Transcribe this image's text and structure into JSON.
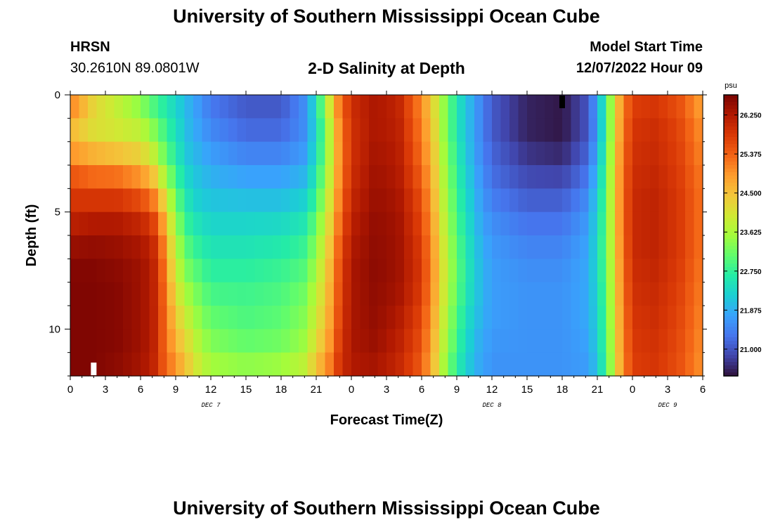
{
  "header": {
    "title": "University of Southern Mississippi Ocean Cube",
    "station": "HRSN",
    "coordinates": "30.2610N  89.0801W",
    "plot_title": "2-D Salinity at Depth",
    "start_label": "Model Start Time",
    "start_value": "12/07/2022 Hour 09"
  },
  "footer": {
    "title": "University of Southern Mississippi Ocean Cube"
  },
  "colors": {
    "background": "#ffffff",
    "text": "#000000"
  },
  "chart_data": {
    "type": "heatmap",
    "title": "2-D Salinity at Depth",
    "xlabel": "Forecast Time(Z)",
    "ylabel": "Depth (ft)",
    "x_range_hours_from_dec7_00z": [
      0,
      54
    ],
    "x_tick_labels": [
      "0",
      "3",
      "6",
      "9",
      "12",
      "15",
      "18",
      "21",
      "0",
      "3",
      "6",
      "9",
      "12",
      "15",
      "18",
      "21",
      "0",
      "3",
      "6"
    ],
    "date_labels": [
      "DEC 7",
      "DEC 8",
      "DEC 9"
    ],
    "y_range_ft": [
      0,
      12
    ],
    "y_tick_values": [
      0,
      5,
      10
    ],
    "y_tick_labels": [
      "0",
      "5",
      "10"
    ],
    "colorbar": {
      "unit": "psu",
      "range": [
        20.4,
        26.7
      ],
      "tick_values": [
        21.0,
        21.875,
        22.75,
        23.625,
        24.5,
        25.375,
        26.25
      ],
      "tick_labels": [
        "21.000",
        "21.875",
        "22.750",
        "23.625",
        "24.500",
        "25.375",
        "26.250"
      ],
      "colormap": [
        "#30123b",
        "#4145ab",
        "#4675ed",
        "#39a2fc",
        "#1bcfd4",
        "#24eca6",
        "#61fc6c",
        "#a4fc3b",
        "#d1e834",
        "#f3c63a",
        "#fe9b2d",
        "#f36315",
        "#d93806",
        "#b11901",
        "#7a0402"
      ]
    },
    "depths_ft": [
      0,
      1,
      2,
      3,
      4,
      5,
      6,
      7,
      8,
      9,
      10,
      11,
      12
    ],
    "profile_hours": [
      0,
      2,
      4,
      6,
      7,
      8,
      9,
      10,
      11,
      12,
      15,
      18,
      20,
      21,
      22,
      23,
      24,
      26,
      28,
      30,
      31,
      32,
      33,
      34,
      35,
      36,
      39,
      42,
      44,
      45,
      46,
      47,
      48,
      50,
      52,
      54
    ],
    "salinity_profiles_psu": [
      [
        25.6,
        24.6,
        24.6,
        25.3,
        25.7,
        26.0,
        26.3,
        26.6,
        26.65,
        26.65,
        26.65,
        26.65,
        26.65
      ],
      [
        24.5,
        24.0,
        24.3,
        25.0,
        25.6,
        26.1,
        26.4,
        26.6,
        26.65,
        26.65,
        26.65,
        26.65,
        26.65
      ],
      [
        23.8,
        23.9,
        24.1,
        24.9,
        25.6,
        26.1,
        26.4,
        26.5,
        26.6,
        26.6,
        26.6,
        26.6,
        26.5
      ],
      [
        23.2,
        23.6,
        24.0,
        24.6,
        25.3,
        25.9,
        26.2,
        26.4,
        26.4,
        26.4,
        26.4,
        26.4,
        26.3
      ],
      [
        22.8,
        23.2,
        23.6,
        24.2,
        24.9,
        25.6,
        26.0,
        26.2,
        26.2,
        26.2,
        26.2,
        26.2,
        26.1
      ],
      [
        22.5,
        22.8,
        23.0,
        23.4,
        24.0,
        24.6,
        25.0,
        25.2,
        25.3,
        25.4,
        25.4,
        25.4,
        25.5
      ],
      [
        22.2,
        22.4,
        22.5,
        22.7,
        23.0,
        23.3,
        23.6,
        23.8,
        24.0,
        24.3,
        24.5,
        24.8,
        25.0
      ],
      [
        21.9,
        22.0,
        22.0,
        22.2,
        22.4,
        22.6,
        22.9,
        23.1,
        23.4,
        23.7,
        24.0,
        24.3,
        24.5
      ],
      [
        21.6,
        21.7,
        21.8,
        22.0,
        22.1,
        22.3,
        22.6,
        22.8,
        23.1,
        23.3,
        23.5,
        23.8,
        24.0
      ],
      [
        21.3,
        21.4,
        21.6,
        21.8,
        22.0,
        22.2,
        22.4,
        22.6,
        22.8,
        23.0,
        23.2,
        23.4,
        23.7
      ],
      [
        21.0,
        21.1,
        21.3,
        21.6,
        21.9,
        22.2,
        22.4,
        22.6,
        22.8,
        22.9,
        23.0,
        23.2,
        23.6
      ],
      [
        21.0,
        21.1,
        21.3,
        21.6,
        21.9,
        22.2,
        22.5,
        22.7,
        22.9,
        23.0,
        23.1,
        23.3,
        23.7
      ],
      [
        21.6,
        21.5,
        21.6,
        21.8,
        22.1,
        22.4,
        22.7,
        22.9,
        23.1,
        23.3,
        23.4,
        23.6,
        24.0
      ],
      [
        22.5,
        22.3,
        22.3,
        22.5,
        22.7,
        23.0,
        23.3,
        23.5,
        23.7,
        23.9,
        24.0,
        24.3,
        24.6
      ],
      [
        24.0,
        23.6,
        23.5,
        23.6,
        23.8,
        24.0,
        24.2,
        24.4,
        24.5,
        24.6,
        24.7,
        24.9,
        25.1
      ],
      [
        25.3,
        25.1,
        25.0,
        25.0,
        25.1,
        25.2,
        25.4,
        25.5,
        25.6,
        25.6,
        25.7,
        25.8,
        25.9
      ],
      [
        26.0,
        25.9,
        25.9,
        25.9,
        26.0,
        26.1,
        26.2,
        26.3,
        26.3,
        26.3,
        26.3,
        26.3,
        26.2
      ],
      [
        26.3,
        26.3,
        26.3,
        26.4,
        26.4,
        26.5,
        26.5,
        26.55,
        26.55,
        26.5,
        26.5,
        26.4,
        26.3
      ],
      [
        26.1,
        26.1,
        26.2,
        26.2,
        26.3,
        26.35,
        26.4,
        26.4,
        26.4,
        26.3,
        26.2,
        26.1,
        26.0
      ],
      [
        25.0,
        25.1,
        25.2,
        25.3,
        25.5,
        25.6,
        25.7,
        25.8,
        25.8,
        25.7,
        25.6,
        25.5,
        25.4
      ],
      [
        24.2,
        24.3,
        24.4,
        24.5,
        24.6,
        24.7,
        24.8,
        24.9,
        24.9,
        24.8,
        24.7,
        24.6,
        24.5
      ],
      [
        23.4,
        23.3,
        23.4,
        23.5,
        23.6,
        23.7,
        23.8,
        23.9,
        23.9,
        23.8,
        23.7,
        23.6,
        23.4
      ],
      [
        22.6,
        22.5,
        22.6,
        22.7,
        22.8,
        22.9,
        23.0,
        23.1,
        23.1,
        23.0,
        22.9,
        22.8,
        22.6
      ],
      [
        22.0,
        22.0,
        22.0,
        22.1,
        22.2,
        22.3,
        22.4,
        22.5,
        22.5,
        22.4,
        22.3,
        22.2,
        22.1
      ],
      [
        21.5,
        21.5,
        21.5,
        21.6,
        21.7,
        21.8,
        21.9,
        22.0,
        22.0,
        22.0,
        21.9,
        21.8,
        21.8
      ],
      [
        21.1,
        21.0,
        21.1,
        21.2,
        21.3,
        21.5,
        21.6,
        21.7,
        21.7,
        21.7,
        21.7,
        21.6,
        21.6
      ],
      [
        20.6,
        20.5,
        20.6,
        20.8,
        21.0,
        21.2,
        21.4,
        21.5,
        21.6,
        21.6,
        21.6,
        21.6,
        21.6
      ],
      [
        20.5,
        20.4,
        20.5,
        20.7,
        21.0,
        21.2,
        21.4,
        21.5,
        21.6,
        21.6,
        21.6,
        21.6,
        21.6
      ],
      [
        21.0,
        20.9,
        21.0,
        21.2,
        21.4,
        21.6,
        21.7,
        21.8,
        21.8,
        21.8,
        21.8,
        21.7,
        21.7
      ],
      [
        21.8,
        21.6,
        21.7,
        21.9,
        22.1,
        22.2,
        22.3,
        22.3,
        22.3,
        22.2,
        22.2,
        22.1,
        22.0
      ],
      [
        23.3,
        23.2,
        23.3,
        23.4,
        23.5,
        23.5,
        23.5,
        23.5,
        23.4,
        23.4,
        23.3,
        23.3,
        23.2
      ],
      [
        24.9,
        24.9,
        25.0,
        25.1,
        25.1,
        25.1,
        25.1,
        25.0,
        25.0,
        24.9,
        24.9,
        24.8,
        24.8
      ],
      [
        25.7,
        25.8,
        25.9,
        25.9,
        26.0,
        26.0,
        26.0,
        26.0,
        25.9,
        25.9,
        25.8,
        25.8,
        25.7
      ],
      [
        25.8,
        25.9,
        26.0,
        26.0,
        26.1,
        26.1,
        26.1,
        26.1,
        26.0,
        26.0,
        25.9,
        25.9,
        25.8
      ],
      [
        25.5,
        25.6,
        25.7,
        25.7,
        25.8,
        25.8,
        25.8,
        25.8,
        25.7,
        25.7,
        25.6,
        25.6,
        25.5
      ],
      [
        24.7,
        24.9,
        25.0,
        25.1,
        25.2,
        25.2,
        25.2,
        25.2,
        25.1,
        25.1,
        25.0,
        25.0,
        24.9
      ]
    ],
    "markers": [
      {
        "name": "surface-marker",
        "hour": 42,
        "depth_ft": 0.3,
        "color": "#000000"
      },
      {
        "name": "bottom-marker",
        "hour": 2,
        "depth_ft": 11.7,
        "color": "#ffffff"
      }
    ]
  }
}
